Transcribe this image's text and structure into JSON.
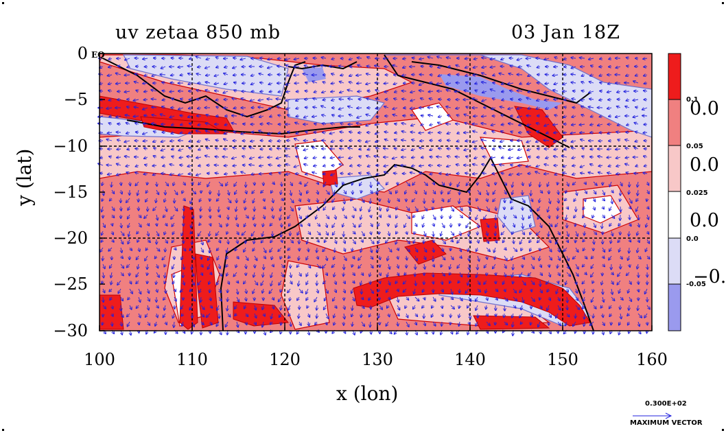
{
  "title_left": "uv zetaa 850 mb",
  "title_right": "03 Jan 18Z",
  "x_axis": {
    "label": "x (lon)",
    "ticks": [
      "100",
      "110",
      "120",
      "130",
      "140",
      "150",
      "160"
    ],
    "range": [
      100,
      160
    ]
  },
  "y_axis": {
    "label": "y (lat)",
    "ticks": [
      "0",
      "−5",
      "−10",
      "−15",
      "−20",
      "−25",
      "−30"
    ],
    "range": [
      -30,
      0
    ]
  },
  "equator_tick": "EQ",
  "colorbar": {
    "bounds": [
      "0.1",
      "0.05",
      "0.025",
      "0.0",
      "-0.05"
    ],
    "big_labels": [
      "0.0",
      "0.0",
      "0.0",
      "−0."
    ],
    "colors": [
      "#ee1c1c",
      "#f08080",
      "#f8c8c8",
      "#ffffff",
      "#dcdcf6",
      "#9a9aee"
    ]
  },
  "max_vector": {
    "value": "0.300E+02",
    "label": "MAXIMUM VECTOR"
  },
  "colors": {
    "vector": "#2020dd",
    "contour_red": "#cc0000",
    "grid": "#000000"
  }
}
